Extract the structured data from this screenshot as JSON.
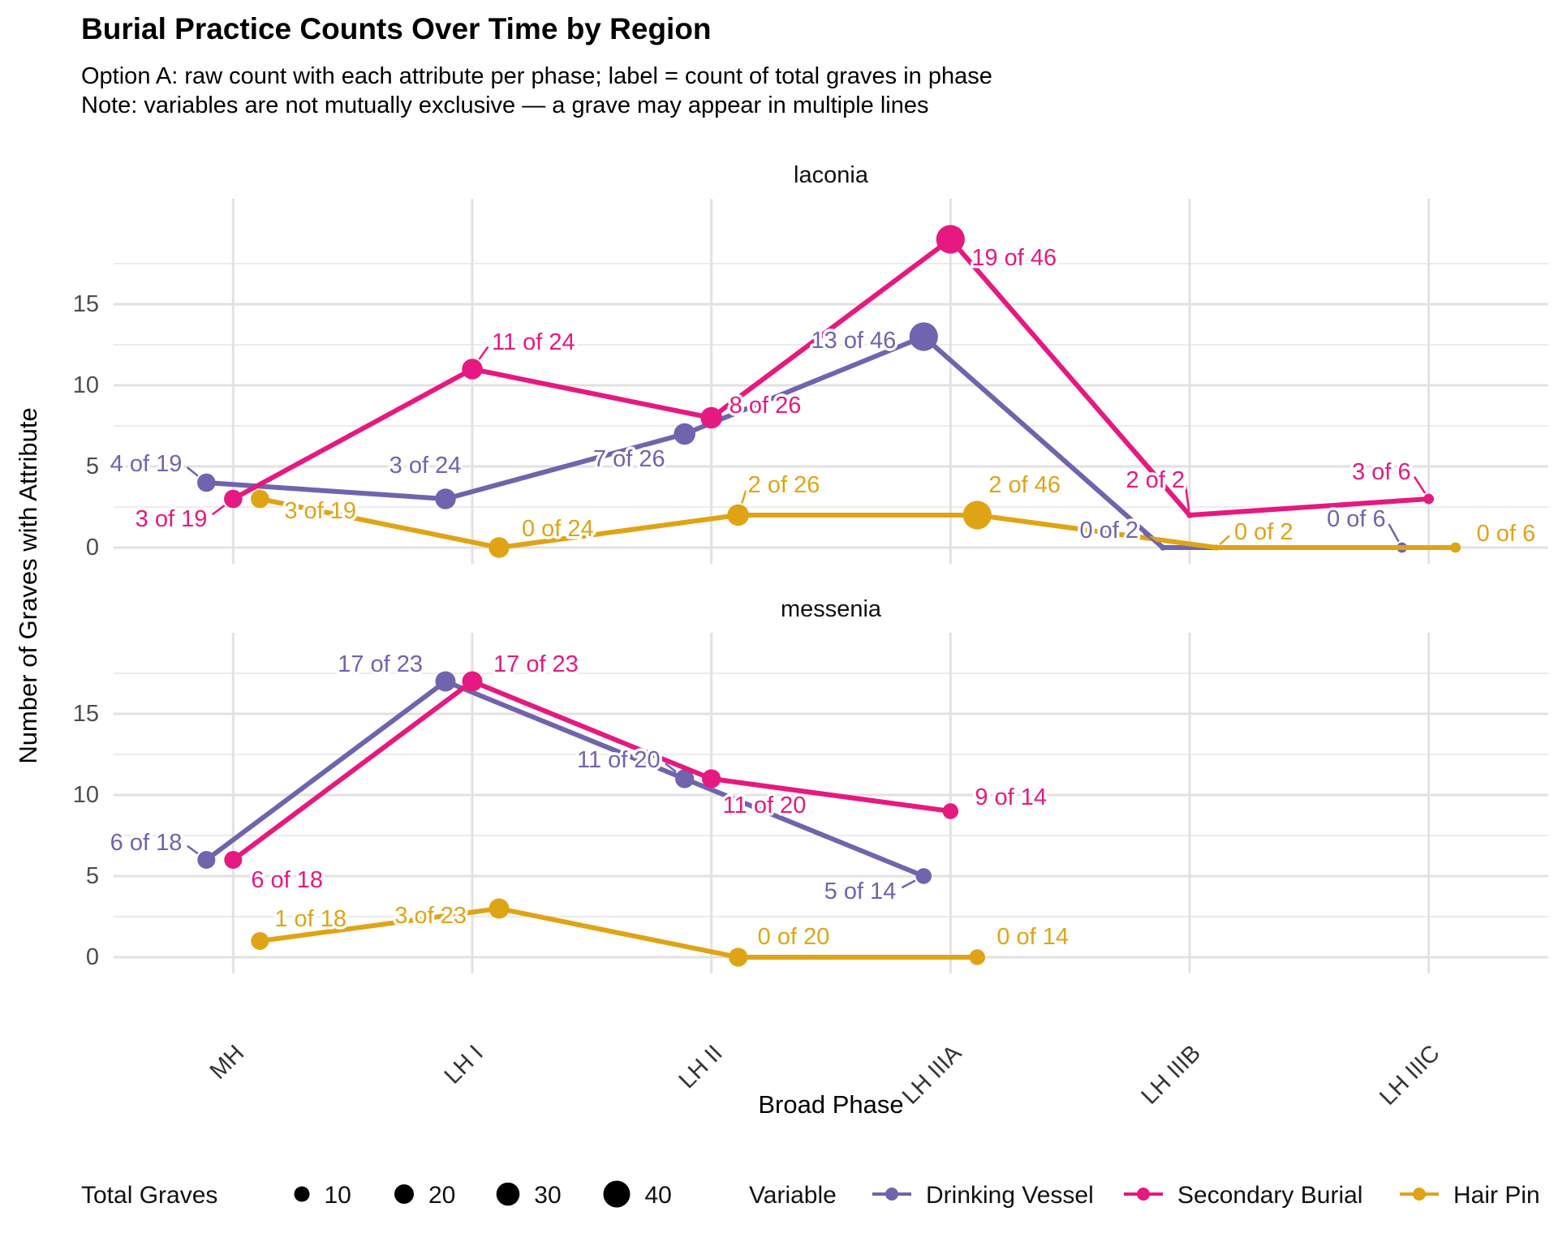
{
  "header": {
    "title": "Burial Practice Counts Over Time by Region",
    "subtitle_line1": "Option A: raw count with each attribute per phase; label = count of total graves in phase",
    "subtitle_line2": "Note: variables are not mutually exclusive — a grave may appear in multiple lines"
  },
  "colors": {
    "drinking_vessel": "#6F64AD",
    "secondary_burial": "#E51980",
    "hair_pin": "#DFA416",
    "grid_major": "#e2e2e2",
    "grid_minor": "#ececec",
    "axis_text": "#4d4d4d",
    "legend_point": "#000000"
  },
  "chart_data": {
    "type": "line",
    "title": "Burial Practice Counts Over Time by Region",
    "xlabel": "Broad Phase",
    "ylabel": "Number of Graves with Attribute",
    "categories": [
      "MH",
      "LH I",
      "LH II",
      "LH IIIA",
      "LH IIIB",
      "LH IIIC"
    ],
    "yticks": [
      0,
      5,
      10,
      15
    ],
    "ylim": [
      0,
      19
    ],
    "grid": true,
    "legend_position": "bottom",
    "point_size_encodes": "total graves in phase",
    "facets": [
      {
        "name": "laconia",
        "series": [
          {
            "name": "Drinking Vessel",
            "color": "#6F64AD",
            "dodge": -33,
            "points": [
              {
                "phase": "MH",
                "value": 4,
                "total": 19,
                "label": "4 of 19",
                "anchor": "end",
                "dx": -30,
                "dy": -14
              },
              {
                "phase": "LH I",
                "value": 3,
                "total": 24,
                "label": "3 of 24",
                "anchor": "middle",
                "dx": -25,
                "dy": -32
              },
              {
                "phase": "LH II",
                "value": 7,
                "total": 26,
                "label": "7 of 26",
                "anchor": "end",
                "dx": -24,
                "dy": 40
              },
              {
                "phase": "LH IIIA",
                "value": 13,
                "total": 46,
                "label": "13 of 46",
                "anchor": "end",
                "dx": -34,
                "dy": 14
              },
              {
                "phase": "LH IIIB",
                "value": 0,
                "total": 2,
                "label": "0 of 2",
                "anchor": "end",
                "dx": -30,
                "dy": -12
              },
              {
                "phase": "LH IIIC",
                "value": 0,
                "total": 6,
                "label": "0 of 6",
                "anchor": "end",
                "dx": -20,
                "dy": -26
              }
            ]
          },
          {
            "name": "Secondary Burial",
            "color": "#E51980",
            "dodge": 0,
            "points": [
              {
                "phase": "MH",
                "value": 3,
                "total": 19,
                "label": "3 of 19",
                "anchor": "end",
                "dx": -32,
                "dy": 34
              },
              {
                "phase": "LH I",
                "value": 11,
                "total": 24,
                "label": "11 of 24",
                "anchor": "start",
                "dx": 24,
                "dy": -24
              },
              {
                "phase": "LH II",
                "value": 8,
                "total": 26,
                "label": "8 of 26",
                "anchor": "start",
                "dx": 22,
                "dy": -6
              },
              {
                "phase": "LH IIIA",
                "value": 19,
                "total": 46,
                "label": "19 of 46",
                "anchor": "start",
                "dx": 26,
                "dy": 32
              },
              {
                "phase": "LH IIIB",
                "value": 2,
                "total": 2,
                "label": "2 of 2",
                "anchor": "end",
                "dx": -6,
                "dy": -34
              },
              {
                "phase": "LH IIIC",
                "value": 3,
                "total": 6,
                "label": "3 of 6",
                "anchor": "end",
                "dx": -22,
                "dy": -24
              }
            ]
          },
          {
            "name": "Hair Pin",
            "color": "#DFA416",
            "dodge": 33,
            "points": [
              {
                "phase": "MH",
                "value": 3,
                "total": 19,
                "label": "3 of 19",
                "anchor": "start",
                "dx": 30,
                "dy": 24
              },
              {
                "phase": "LH I",
                "value": 0,
                "total": 24,
                "label": "0 of 24",
                "anchor": "start",
                "dx": 28,
                "dy": -14
              },
              {
                "phase": "LH II",
                "value": 2,
                "total": 26,
                "label": "2 of 26",
                "anchor": "start",
                "dx": 12,
                "dy": -28
              },
              {
                "phase": "LH IIIA",
                "value": 2,
                "total": 46,
                "label": "2 of 46",
                "anchor": "start",
                "dx": 14,
                "dy": -28
              },
              {
                "phase": "LH IIIB",
                "value": 0,
                "total": 2,
                "label": "0 of 2",
                "anchor": "start",
                "dx": 22,
                "dy": -10
              },
              {
                "phase": "LH IIIC",
                "value": 0,
                "total": 6,
                "label": "0 of 6",
                "anchor": "start",
                "dx": 26,
                "dy": -8
              }
            ]
          }
        ]
      },
      {
        "name": "messenia",
        "series": [
          {
            "name": "Drinking Vessel",
            "color": "#6F64AD",
            "dodge": -33,
            "points": [
              {
                "phase": "MH",
                "value": 6,
                "total": 18,
                "label": "6 of 18",
                "anchor": "end",
                "dx": -30,
                "dy": -12
              },
              {
                "phase": "LH I",
                "value": 17,
                "total": 23,
                "label": "17 of 23",
                "anchor": "end",
                "dx": -28,
                "dy": -12
              },
              {
                "phase": "LH II",
                "value": 11,
                "total": 20,
                "label": "11 of 20",
                "anchor": "end",
                "dx": -30,
                "dy": -14
              },
              {
                "phase": "LH IIIA",
                "value": 5,
                "total": 14,
                "label": "5 of 14",
                "anchor": "end",
                "dx": -34,
                "dy": 28
              }
            ]
          },
          {
            "name": "Secondary Burial",
            "color": "#E51980",
            "dodge": 0,
            "points": [
              {
                "phase": "MH",
                "value": 6,
                "total": 18,
                "label": "6 of 18",
                "anchor": "start",
                "dx": 22,
                "dy": 34
              },
              {
                "phase": "LH I",
                "value": 17,
                "total": 23,
                "label": "17 of 23",
                "anchor": "start",
                "dx": 26,
                "dy": -12
              },
              {
                "phase": "LH II",
                "value": 11,
                "total": 20,
                "label": "11 of 20",
                "anchor": "start",
                "dx": 14,
                "dy": 42
              },
              {
                "phase": "LH IIIA",
                "value": 9,
                "total": 14,
                "label": "9 of 14",
                "anchor": "start",
                "dx": 30,
                "dy": -8
              }
            ]
          },
          {
            "name": "Hair Pin",
            "color": "#DFA416",
            "dodge": 33,
            "points": [
              {
                "phase": "MH",
                "value": 1,
                "total": 18,
                "label": "1 of 18",
                "anchor": "start",
                "dx": 18,
                "dy": -18
              },
              {
                "phase": "LH I",
                "value": 3,
                "total": 23,
                "label": "3 of 23",
                "anchor": "end",
                "dx": -40,
                "dy": 18
              },
              {
                "phase": "LH II",
                "value": 0,
                "total": 20,
                "label": "0 of 20",
                "anchor": "start",
                "dx": 24,
                "dy": -16
              },
              {
                "phase": "LH IIIA",
                "value": 0,
                "total": 14,
                "label": "0 of 14",
                "anchor": "start",
                "dx": 24,
                "dy": -16
              }
            ]
          }
        ]
      }
    ],
    "size_legend": {
      "title": "Total Graves",
      "values": [
        10,
        20,
        30,
        40
      ]
    },
    "variable_legend": {
      "title": "Variable",
      "entries": [
        {
          "label": "Drinking Vessel",
          "color": "#6F64AD"
        },
        {
          "label": "Secondary Burial",
          "color": "#E51980"
        },
        {
          "label": "Hair Pin",
          "color": "#DFA416"
        }
      ]
    }
  }
}
